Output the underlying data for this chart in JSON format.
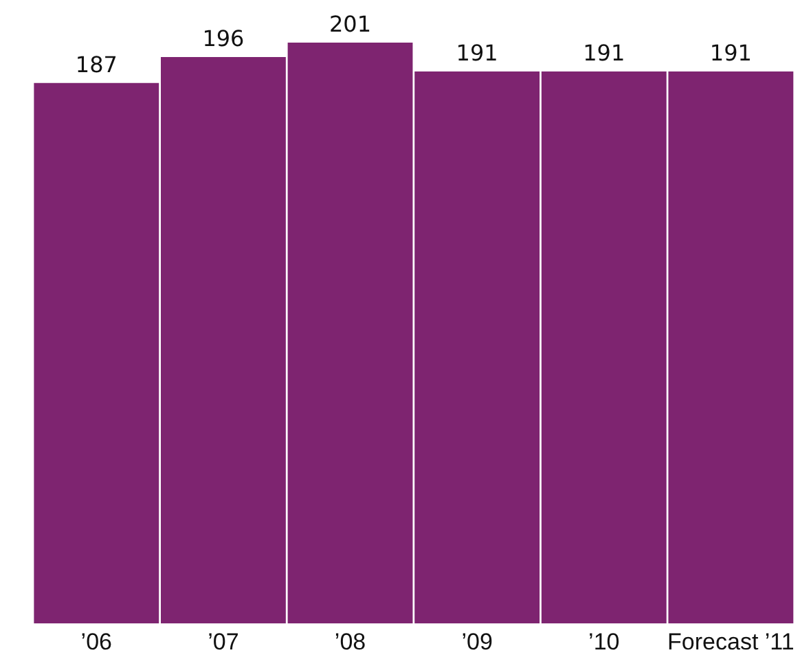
{
  "chart_data": {
    "type": "bar",
    "categories": [
      "’06",
      "’07",
      "’08",
      "’09",
      "’10",
      "Forecast ’11"
    ],
    "values": [
      187,
      196,
      201,
      191,
      191,
      191
    ],
    "color": "#7e2470",
    "data_labels": true,
    "relative": false,
    "grid": false,
    "legend": false
  }
}
